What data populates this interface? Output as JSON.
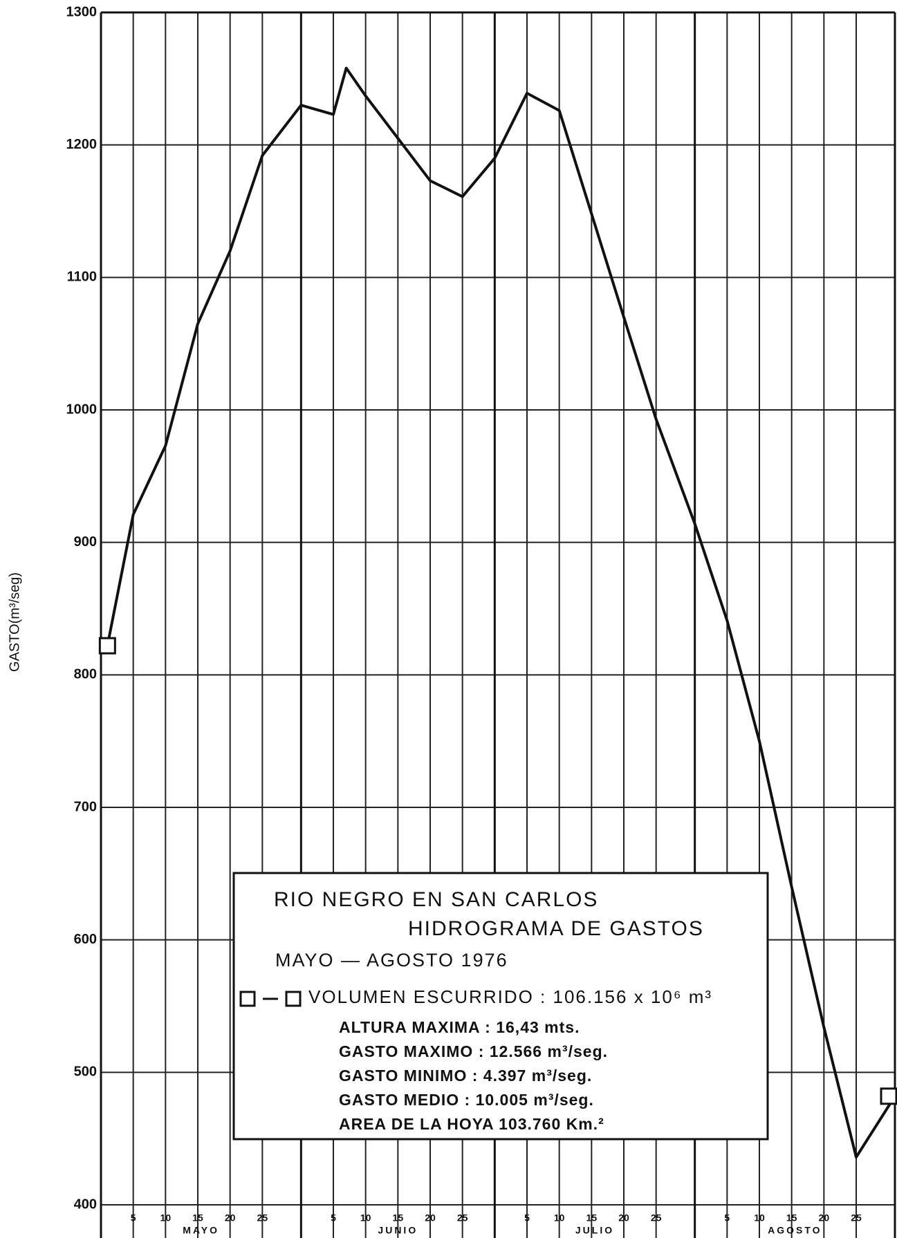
{
  "chart_data": {
    "type": "line",
    "title": "RIO NEGRO EN SAN CARLOS",
    "subtitle": "HIDROGRAMA DE GASTOS",
    "period": "MAYO — AGOSTO 1976",
    "y_label": "GASTO(m³/seg)",
    "notes": [
      "ALTURA MAXIMA : 16,43 mts.",
      "GASTO MAXIMO : 12.566 m³/seg.",
      "GASTO MINIMO : 4.397 m³/seg.",
      "GASTO MEDIO : 10.005 m³/seg.",
      "AREA DE LA HOYA 103.760 Km.²"
    ],
    "months": [
      "MAYO",
      "JUNIO",
      "JULIO",
      "AGOSTO"
    ],
    "month_bounds": [
      0,
      31,
      61,
      92,
      123
    ],
    "series": [
      {
        "name": "VOLUMEN ESCURRIDO : 106.156 x 10⁶ m³",
        "color": "#111111",
        "x": [
          1,
          5,
          10,
          15,
          20,
          25,
          31,
          36,
          38,
          41,
          46,
          51,
          56,
          61,
          66,
          71,
          76,
          81,
          86,
          92,
          97,
          102,
          107,
          112,
          117,
          123
        ],
        "values": [
          822,
          921,
          973,
          1065,
          1120,
          1192,
          1230,
          1223,
          1258,
          1237,
          1205,
          1173,
          1161,
          1190,
          1239,
          1226,
          1148,
          1070,
          993,
          914,
          841,
          750,
          640,
          534,
          436,
          482
        ]
      }
    ],
    "xlim": [
      0,
      123
    ],
    "xticks": [
      {
        "value": 5,
        "label": "5"
      },
      {
        "value": 10,
        "label": "10"
      },
      {
        "value": 15,
        "label": "15"
      },
      {
        "value": 20,
        "label": "20"
      },
      {
        "value": 25,
        "label": "25"
      },
      {
        "value": 36,
        "label": "5"
      },
      {
        "value": 41,
        "label": "10"
      },
      {
        "value": 46,
        "label": "15"
      },
      {
        "value": 51,
        "label": "20"
      },
      {
        "value": 56,
        "label": "25"
      },
      {
        "value": 66,
        "label": "5"
      },
      {
        "value": 71,
        "label": "10"
      },
      {
        "value": 76,
        "label": "15"
      },
      {
        "value": 81,
        "label": "20"
      },
      {
        "value": 86,
        "label": "25"
      },
      {
        "value": 97,
        "label": "5"
      },
      {
        "value": 102,
        "label": "10"
      },
      {
        "value": 107,
        "label": "15"
      },
      {
        "value": 112,
        "label": "20"
      },
      {
        "value": 117,
        "label": "25"
      }
    ],
    "ylim": [
      400,
      1300
    ],
    "yticks": [
      400,
      500,
      600,
      700,
      800,
      900,
      1000,
      1100,
      1200,
      1300
    ],
    "grid": true
  }
}
